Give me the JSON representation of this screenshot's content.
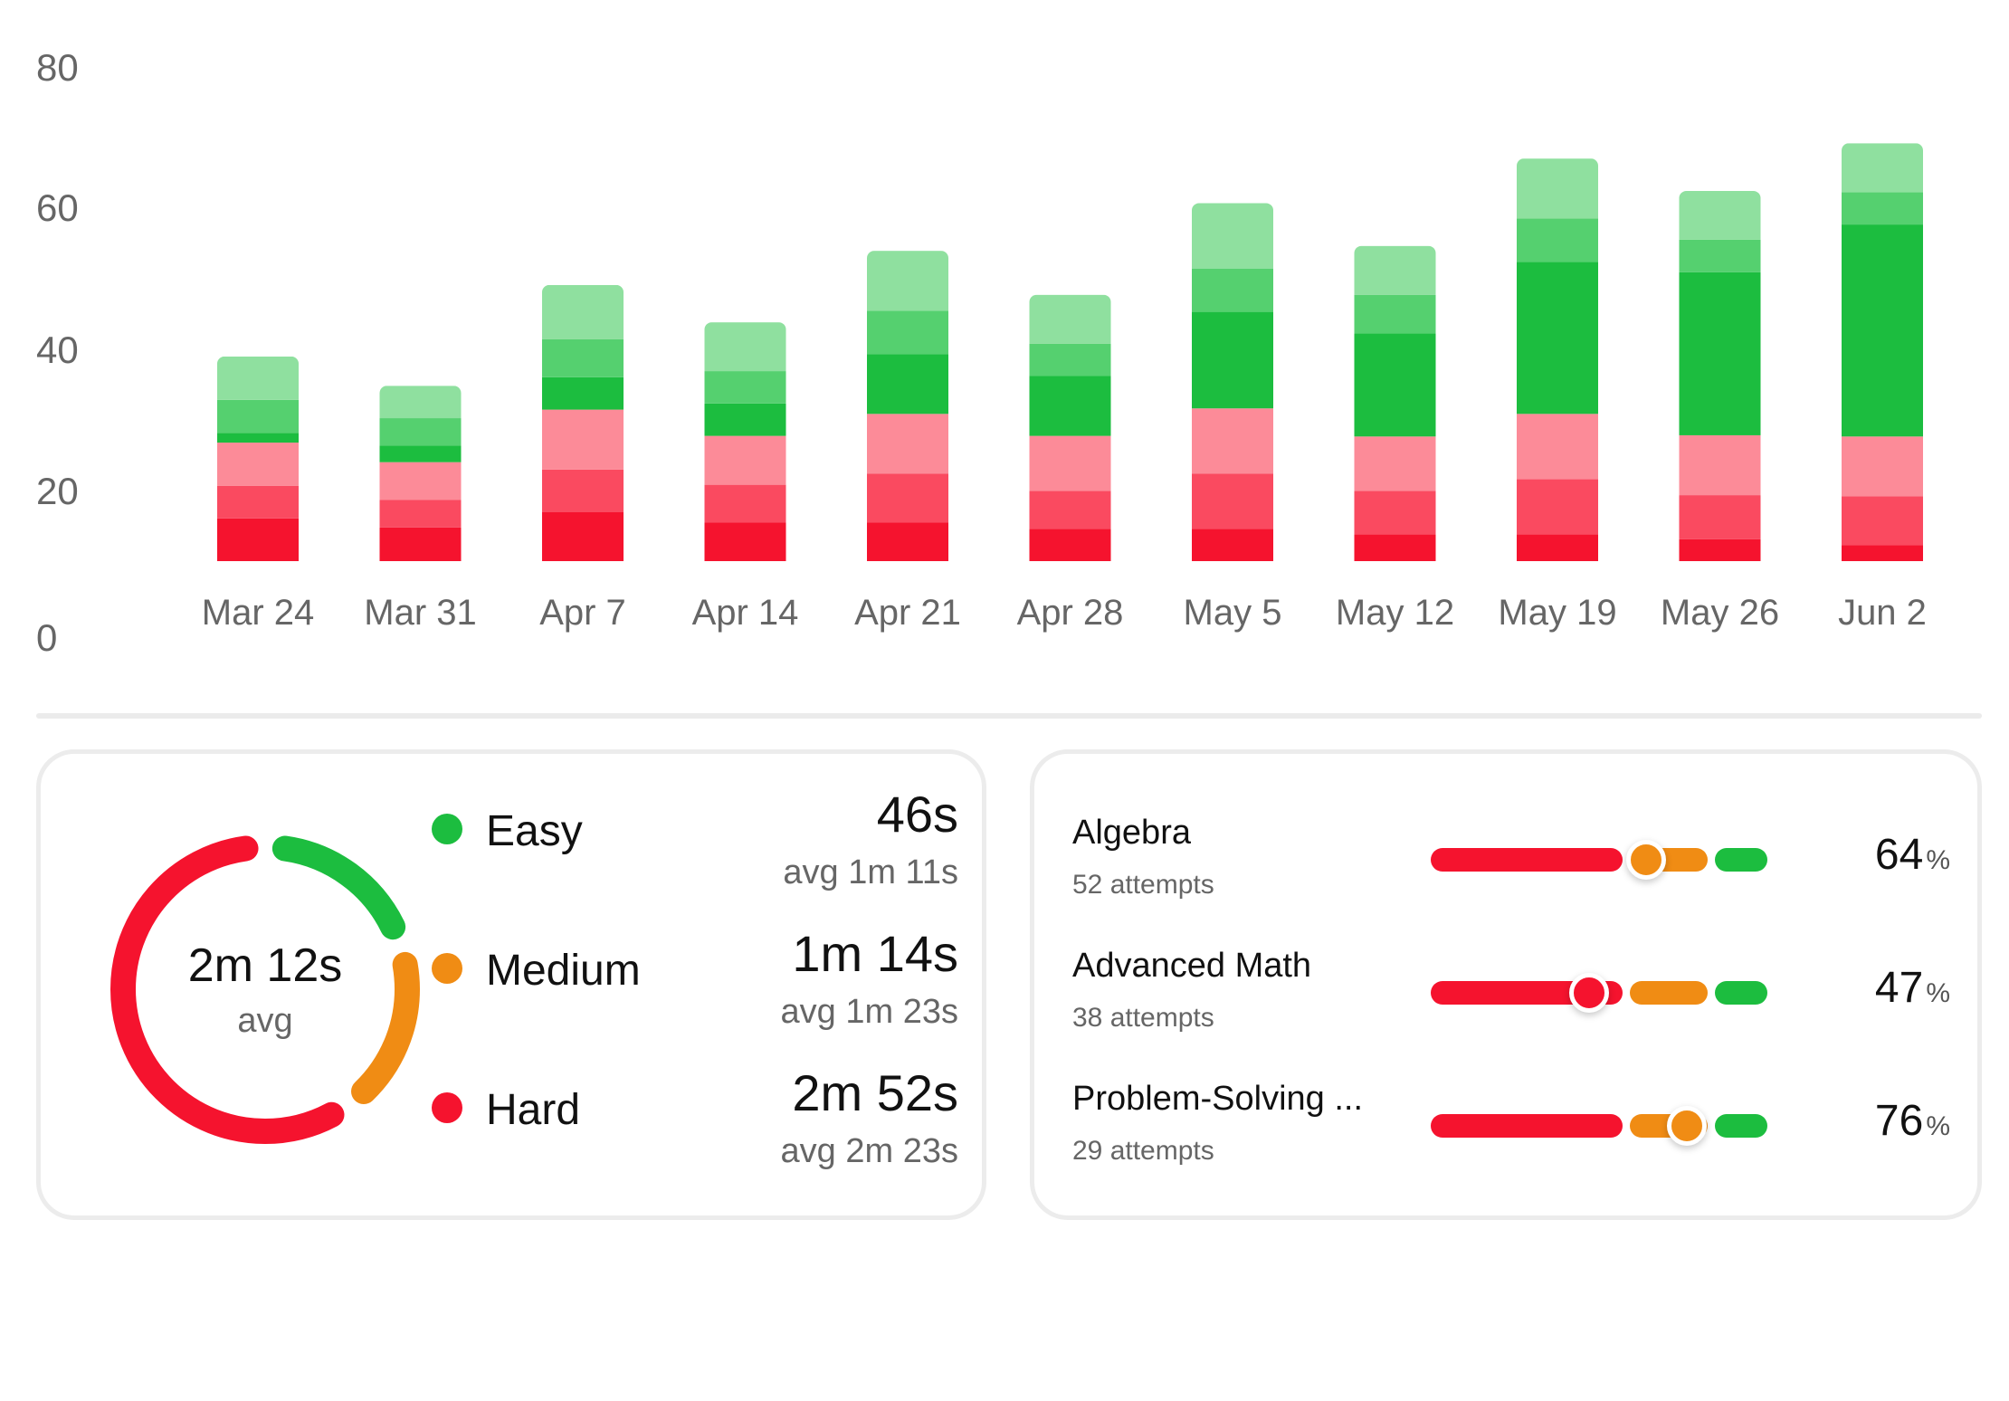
{
  "colors": {
    "easy": "#1cbd3f",
    "medium": "#f08c14",
    "hard": "#f5132e",
    "green_shades": [
      "#1cbd3f",
      "#55d06f",
      "#8fe09f"
    ],
    "red_shades": [
      "#f5132e",
      "#fa4a60",
      "#fc8b98"
    ]
  },
  "chart_data": {
    "type": "bar",
    "stacked": true,
    "categories": [
      "Mar 24",
      "Mar 31",
      "Apr 7",
      "Apr 14",
      "Apr 21",
      "Apr 28",
      "May 5",
      "May 12",
      "May 19",
      "May 26",
      "Jun 2"
    ],
    "y_ticks": [
      "0",
      "20",
      "40",
      "60",
      "80"
    ],
    "ylim": [
      0,
      80
    ],
    "grid": false,
    "legend": "none",
    "series": [
      {
        "color": "#f5132e",
        "values": [
          7,
          5.5,
          8,
          6.3,
          6.3,
          5.3,
          5.3,
          4.4,
          4.4,
          3.6,
          2.6
        ]
      },
      {
        "color": "#fa4a60",
        "values": [
          5.3,
          4.5,
          7,
          6.2,
          8,
          6.2,
          9,
          7.1,
          9,
          7.2,
          8
        ]
      },
      {
        "color": "#fc8b98",
        "values": [
          7.1,
          6.2,
          9.8,
          8,
          9.8,
          9,
          10.7,
          8.9,
          10.7,
          9.8,
          9.8
        ]
      },
      {
        "color": "#1cbd3f",
        "values": [
          1.6,
          2.7,
          5.3,
          5.3,
          9.8,
          9.8,
          15.8,
          16.9,
          24.9,
          26.7,
          34.7
        ]
      },
      {
        "color": "#55d06f",
        "values": [
          5.4,
          4.5,
          6.2,
          5.3,
          7.1,
          5.3,
          7.1,
          6.3,
          7.1,
          5.3,
          5.3
        ]
      },
      {
        "color": "#8fe09f",
        "values": [
          7.1,
          5.3,
          8.9,
          8,
          9.8,
          8,
          10.7,
          8,
          9.8,
          8,
          8
        ]
      }
    ]
  },
  "time_card": {
    "donut": {
      "value": "2m 12s",
      "label": "avg",
      "segments": [
        {
          "level": "easy",
          "fraction": 0.2
        },
        {
          "level": "medium",
          "fraction": 0.2
        },
        {
          "level": "hard",
          "fraction": 0.6
        }
      ]
    },
    "levels": [
      {
        "name": "Easy",
        "time": "46s",
        "avg": "avg 1m 11s"
      },
      {
        "name": "Medium",
        "time": "1m 14s",
        "avg": "avg 1m 23s"
      },
      {
        "name": "Hard",
        "time": "2m 52s",
        "avg": "avg 2m 23s"
      }
    ]
  },
  "topics_card": {
    "topics": [
      {
        "name": "Algebra",
        "attempts": "52 attempts",
        "percent": "64",
        "marker_fraction": 0.64,
        "marker_level": "medium"
      },
      {
        "name": "Advanced Math",
        "attempts": "38 attempts",
        "percent": "47",
        "marker_fraction": 0.47,
        "marker_level": "hard"
      },
      {
        "name": "Problem-Solving ...",
        "attempts": "29 attempts",
        "percent": "76",
        "marker_fraction": 0.76,
        "marker_level": "medium"
      }
    ],
    "percent_symbol": "%"
  }
}
